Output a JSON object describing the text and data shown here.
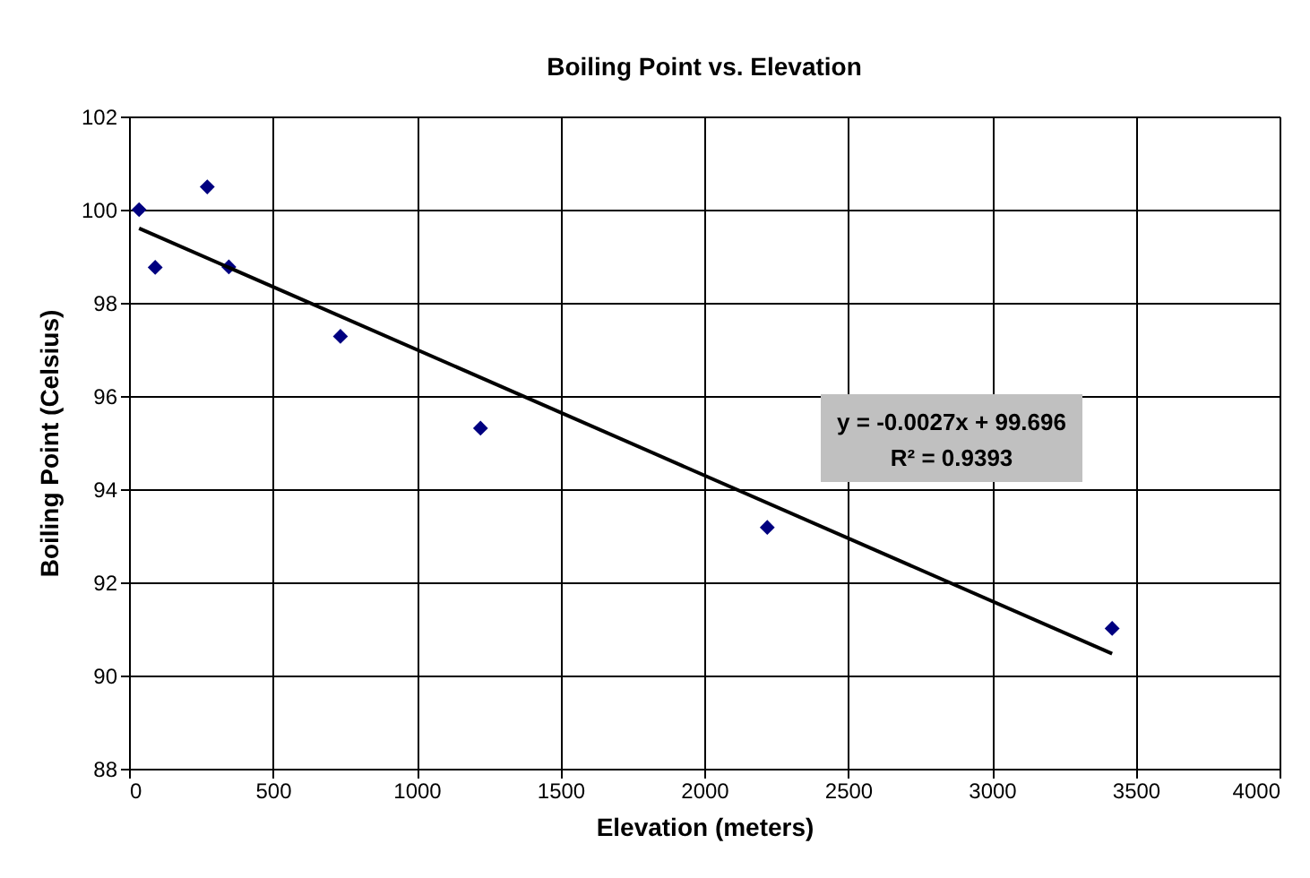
{
  "chart_data": {
    "type": "scatter",
    "title": "Boiling Point vs. Elevation",
    "xlabel": "Elevation (meters)",
    "ylabel": "Boiling Point (Celsius)",
    "x": [
      35,
      91,
      272,
      347,
      735,
      1222,
      2219,
      3418
    ],
    "series": [
      {
        "color": "#000080",
        "marker": "diamond",
        "values": [
          100.0,
          98.76,
          100.49,
          98.77,
          97.28,
          95.31,
          93.18,
          91.01
        ]
      },
      {
        "type": "line",
        "color": "#000000",
        "marker": "none",
        "line_style": "solid",
        "x": [
          35,
          3418
        ],
        "values": [
          99.6,
          90.47
        ]
      }
    ],
    "annotations": [
      "y = -0.0027x + 99.696",
      "R² = 0.9393"
    ],
    "xlim": [
      0,
      4000
    ],
    "xticks": [
      0,
      500,
      1000,
      1500,
      2000,
      2500,
      3000,
      3500,
      4000
    ],
    "ylim": [
      88,
      102
    ],
    "yticks": [
      88,
      90,
      92,
      94,
      96,
      98,
      100,
      102
    ],
    "grid": true,
    "legend": false
  }
}
